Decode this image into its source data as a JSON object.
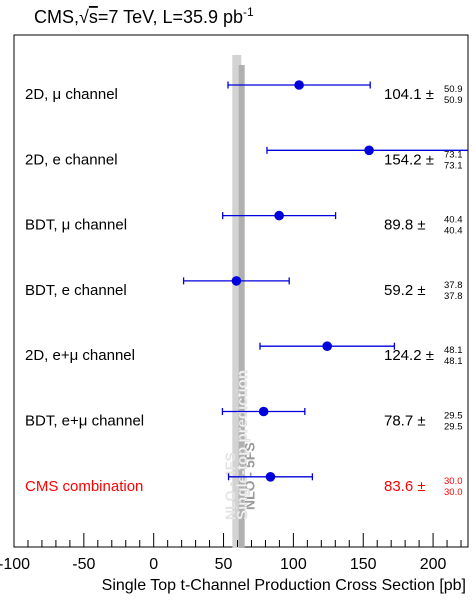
{
  "chart_data": {
    "type": "scatter",
    "title_prefix": "CMS,",
    "title_sqrt": "√",
    "title_s": "s",
    "title_rest": "=7 TeV, L=35.9 pb",
    "title_sup": "-1",
    "xlabel": "Single Top t-Channel Production Cross Section [pb]",
    "xlim": [
      -100,
      225
    ],
    "x_ticks": [
      -100,
      -50,
      0,
      50,
      100,
      150,
      200
    ],
    "x_tick_labels": [
      "-100",
      "-50",
      "0",
      "50",
      "100",
      "150",
      "200"
    ],
    "theory": [
      {
        "name": "NLO - 4FS",
        "x": 59.5,
        "color": "#d3d3d3"
      },
      {
        "name": "NLO - 5FS",
        "x": 63.0,
        "color": "#b0b0b0"
      }
    ],
    "theory_overlay_text": "Single-top prediction",
    "measurements": [
      {
        "label": "2D, μ channel",
        "value": 104.1,
        "value_text": "104.1",
        "pm": "±",
        "err_up": 50.9,
        "err_down": 50.9,
        "err_up_text": "50.9",
        "err_down_text": "50.9",
        "color": "#0000dd",
        "label_color": "#000000"
      },
      {
        "label": "2D, e channel",
        "value": 154.2,
        "value_text": "154.2",
        "pm": "±",
        "err_up": 73.1,
        "err_down": 73.1,
        "err_up_text": "73.1",
        "err_down_text": "73.1",
        "color": "#0000dd",
        "label_color": "#000000"
      },
      {
        "label": "BDT, μ channel",
        "value": 89.8,
        "value_text": "89.8",
        "pm": "±",
        "err_up": 40.4,
        "err_down": 40.4,
        "err_up_text": "40.4",
        "err_down_text": "40.4",
        "color": "#0000dd",
        "label_color": "#000000"
      },
      {
        "label": "BDT, e channel",
        "value": 59.2,
        "value_text": "59.2",
        "pm": "±",
        "err_up": 37.8,
        "err_down": 37.8,
        "err_up_text": "37.8",
        "err_down_text": "37.8",
        "color": "#0000dd",
        "label_color": "#000000"
      },
      {
        "label": "2D, e+μ channel",
        "value": 124.2,
        "value_text": "124.2",
        "pm": "±",
        "err_up": 48.1,
        "err_down": 48.1,
        "err_up_text": "48.1",
        "err_down_text": "48.1",
        "color": "#0000dd",
        "label_color": "#000000"
      },
      {
        "label": "BDT, e+μ channel",
        "value": 78.7,
        "value_text": "78.7",
        "pm": "±",
        "err_up": 29.5,
        "err_down": 29.5,
        "err_up_text": "29.5",
        "err_down_text": "29.5",
        "color": "#0000dd",
        "label_color": "#000000"
      },
      {
        "label": "CMS combination",
        "value": 83.6,
        "value_text": "83.6",
        "pm": "±",
        "err_up": 30.0,
        "err_down": 30.0,
        "err_up_text": "30.0",
        "err_down_text": "30.0",
        "color": "#0000dd",
        "label_color": "#ff0000"
      }
    ]
  }
}
